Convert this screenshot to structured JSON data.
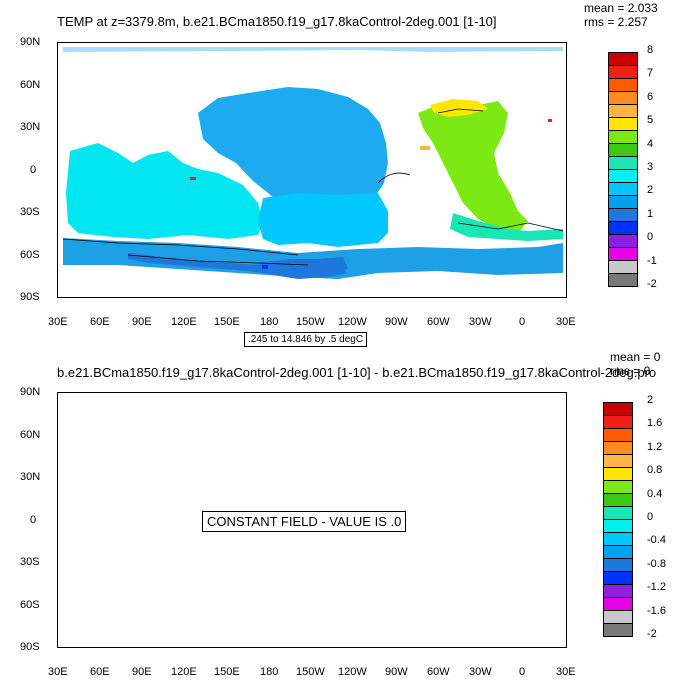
{
  "panel1": {
    "title": "TEMP at z=3379.8m, b.e21.BCma1850.f19_g17.8kaControl-2deg.001 [1-10]",
    "mean": "mean = 2.033",
    "rms": "rms = 2.257",
    "info": ".245 to 14.846 by .5 degC",
    "colorbar_labels": [
      "8",
      "7",
      "6",
      "5",
      "4",
      "3",
      "2",
      "1",
      "0",
      "-1",
      "-2"
    ],
    "colors": [
      "#c80000",
      "#f01e14",
      "#ff5a00",
      "#ff8c1e",
      "#ffb446",
      "#ffe600",
      "#7ce814",
      "#3cc814",
      "#19e6b4",
      "#00f0f0",
      "#00c8ff",
      "#00a0f0",
      "#1e78dc",
      "#0032ff",
      "#8c1ee6",
      "#e600e6",
      "#c8c8c8",
      "#787878"
    ]
  },
  "panel2": {
    "title": "b.e21.BCma1850.f19_g17.8kaControl-2deg.001 [1-10] - b.e21.BCma1850.f19_g17.8kaControl-2deg.pro",
    "mean": "mean = 0",
    "rms": "rms = 0",
    "message": "CONSTANT FIELD - VALUE IS .0",
    "colorbar_labels": [
      "2",
      "1.6",
      "1.2",
      "0.8",
      "0.4",
      "0",
      "-0.4",
      "-0.8",
      "-1.2",
      "-1.6",
      "-2"
    ],
    "colors": [
      "#c80000",
      "#f01e14",
      "#ff5a00",
      "#ff8c1e",
      "#ffb446",
      "#ffe600",
      "#7ce814",
      "#3cc814",
      "#19e6b4",
      "#00f0f0",
      "#00c8ff",
      "#00a0f0",
      "#1e78dc",
      "#0032ff",
      "#8c1ee6",
      "#e600e6",
      "#c8c8c8",
      "#787878"
    ]
  },
  "axes": {
    "lat_labels": [
      "90N",
      "60N",
      "30N",
      "0",
      "30S",
      "60S",
      "90S"
    ],
    "lon_labels": [
      "30E",
      "60E",
      "90E",
      "120E",
      "150E",
      "180",
      "150W",
      "120W",
      "90W",
      "60W",
      "30W",
      "0",
      "30E"
    ]
  }
}
